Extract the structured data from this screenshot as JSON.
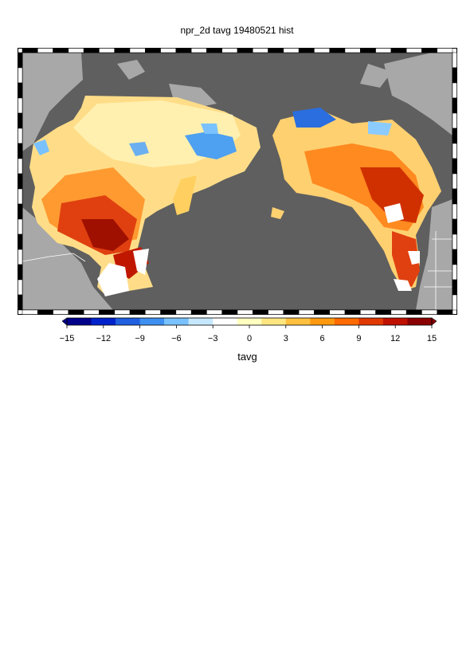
{
  "title": "npr_2d tavg 19480521 hist",
  "colorbar": {
    "label": "tavg",
    "ticks": [
      "−15",
      "−12",
      "−9",
      "−6",
      "−3",
      "0",
      "3",
      "6",
      "9",
      "12",
      "15"
    ],
    "min": -15,
    "max": 15,
    "colors": [
      "#00008b",
      "#0022cc",
      "#1f5fe0",
      "#3d8ff0",
      "#79c2ff",
      "#c6e8ff",
      "#ffffff",
      "#ffffc0",
      "#ffe680",
      "#ffc040",
      "#ff9a10",
      "#ff6a00",
      "#e03800",
      "#c01000",
      "#8b0000"
    ]
  },
  "map": {
    "ocean_color": "#5f5f5f",
    "land_color": "#a8a8a8",
    "border_color": "#ffffff"
  }
}
